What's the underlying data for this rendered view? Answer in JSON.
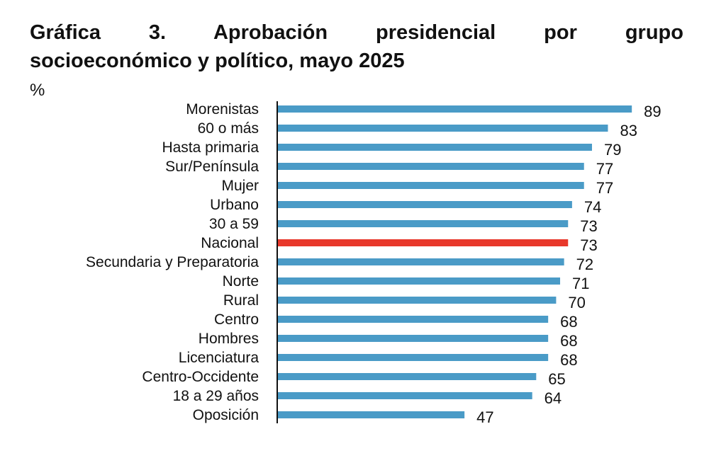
{
  "chart_data": {
    "type": "bar",
    "orientation": "horizontal",
    "title_line1": "Gráfica 3. Aprobación presidencial por grupo",
    "title_line2": "socioeconómico y político, mayo 2025",
    "title": "Gráfica 3. Aprobación presidencial por grupo socioeconómico y político, mayo 2025",
    "unit_label": "%",
    "xlabel": "",
    "ylabel": "",
    "xlim": [
      0,
      100
    ],
    "grid": false,
    "legend": "none",
    "categories": [
      "Morenistas",
      "60 o más",
      "Hasta primaria",
      "Sur/Península",
      "Mujer",
      "Urbano",
      "30 a 59",
      "Nacional",
      "Secundaria y Preparatoria",
      "Norte",
      "Rural",
      "Centro",
      "Hombres",
      "Licenciatura",
      "Centro-Occidente",
      "18 a 29 años",
      "Oposición"
    ],
    "values": [
      89,
      83,
      79,
      77,
      77,
      74,
      73,
      73,
      72,
      71,
      70,
      68,
      68,
      68,
      65,
      64,
      47
    ],
    "highlight_category": "Nacional",
    "colors": {
      "default": "#4a9bc7",
      "highlight": "#e8382b",
      "axis": "#111111"
    }
  }
}
